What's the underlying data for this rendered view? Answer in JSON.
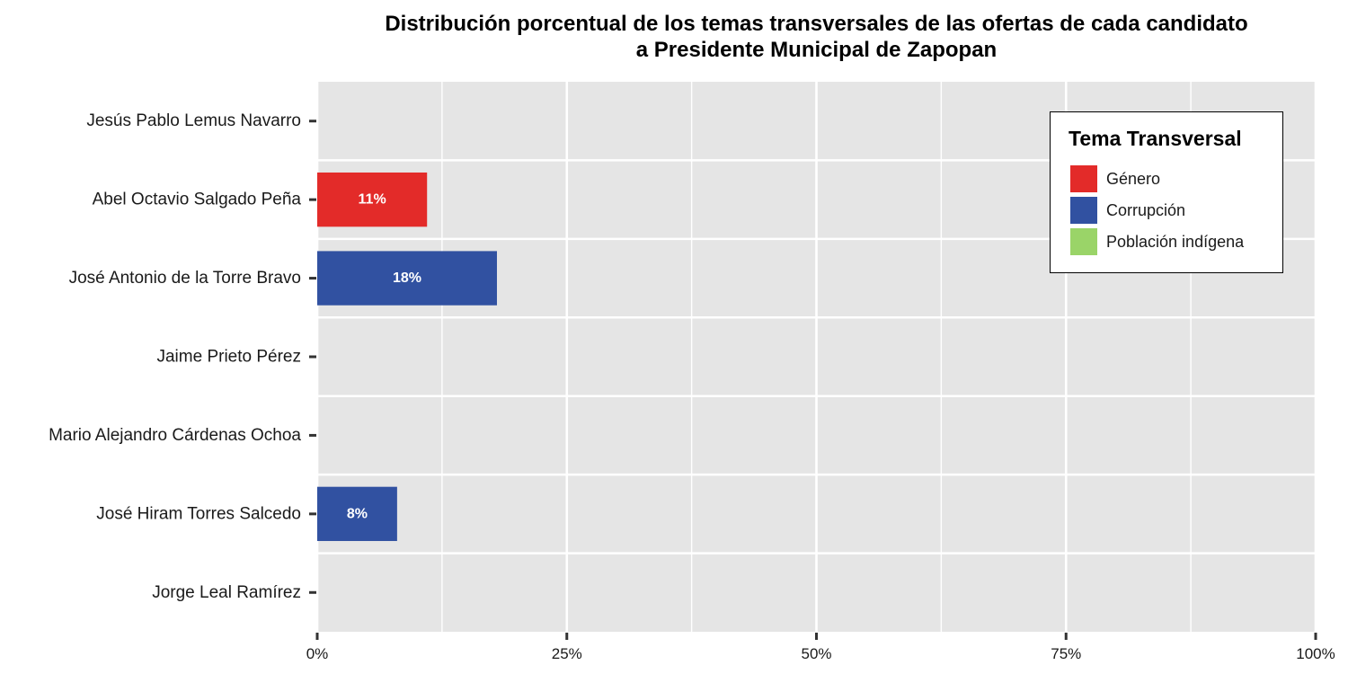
{
  "chart_data": {
    "type": "bar",
    "orientation": "horizontal",
    "stacked": true,
    "title_lines": [
      "Distribución porcentual de los temas transversales de las ofertas de cada candidato",
      "a Presidente Municipal de Zapopan"
    ],
    "categories": [
      "Jesús Pablo Lemus Navarro",
      "Abel Octavio Salgado Peña",
      "José Antonio de la Torre Bravo",
      "Jaime Prieto Pérez",
      "Mario Alejandro Cárdenas Ochoa",
      "José Hiram Torres Salcedo",
      "Jorge Leal Ramírez"
    ],
    "series": [
      {
        "name": "Género",
        "color": "#e32b29",
        "values": [
          0,
          11,
          0,
          0,
          0,
          0,
          0
        ]
      },
      {
        "name": "Corrupción",
        "color": "#3151a1",
        "values": [
          0,
          0,
          18,
          0,
          0,
          8,
          0
        ]
      },
      {
        "name": "Población indígena",
        "color": "#9ad468",
        "values": [
          0,
          0,
          0,
          0,
          0,
          0,
          0
        ]
      }
    ],
    "data_labels": [
      {
        "category": "Abel Octavio Salgado Peña",
        "series": "Género",
        "text": "11%"
      },
      {
        "category": "José Antonio de la Torre Bravo",
        "series": "Corrupción",
        "text": "18%"
      },
      {
        "category": "José Hiram Torres Salcedo",
        "series": "Corrupción",
        "text": "8%"
      }
    ],
    "xlim": [
      0,
      100
    ],
    "xticks": [
      0,
      25,
      50,
      75,
      100
    ],
    "xtick_labels": [
      "0%",
      "25%",
      "50%",
      "75%",
      "100%"
    ],
    "grid": true,
    "legend": {
      "title": "Tema Transversal",
      "position": "top-right"
    }
  }
}
